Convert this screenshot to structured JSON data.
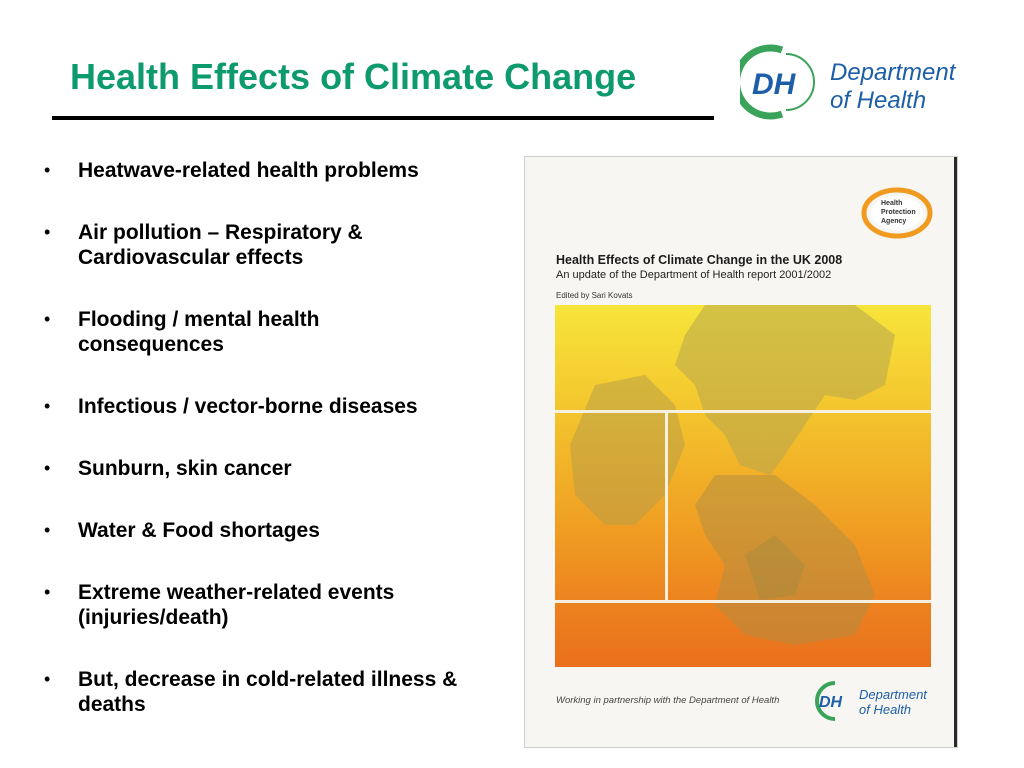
{
  "slide": {
    "title": "Health Effects of Climate Change"
  },
  "logo": {
    "initials": "DH",
    "line1": "Department",
    "line2": "of Health"
  },
  "bullets": [
    "Heatwave-related health problems",
    "Air pollution – Respiratory &\nCardiovascular effects",
    "Flooding / mental health\nconsequences",
    "Infectious / vector-borne diseases",
    "Sunburn, skin cancer",
    "Water & Food shortages",
    "Extreme weather-related events\n(injuries/death)",
    "But, decrease in cold-related illness &\ndeaths"
  ],
  "bullet_symbol": "•",
  "cover": {
    "hpa_line1": "Health",
    "hpa_line2": "Protection",
    "hpa_line3": "Agency",
    "title": "Health Effects of Climate Change in the UK 2008",
    "subtitle": "An update of the Department of Health report 2001/2002",
    "editor": "Edited by Sari Kovats",
    "footer": "Working in partnership with the Department of Health",
    "dh_initials": "DH",
    "dh_line1": "Department",
    "dh_line2": "of Health"
  },
  "colors": {
    "title_green": "#0c9a6e",
    "dh_green": "#3aa35a",
    "dh_blue": "#1d5ea8",
    "hpa_orange": "#f09a1f"
  }
}
